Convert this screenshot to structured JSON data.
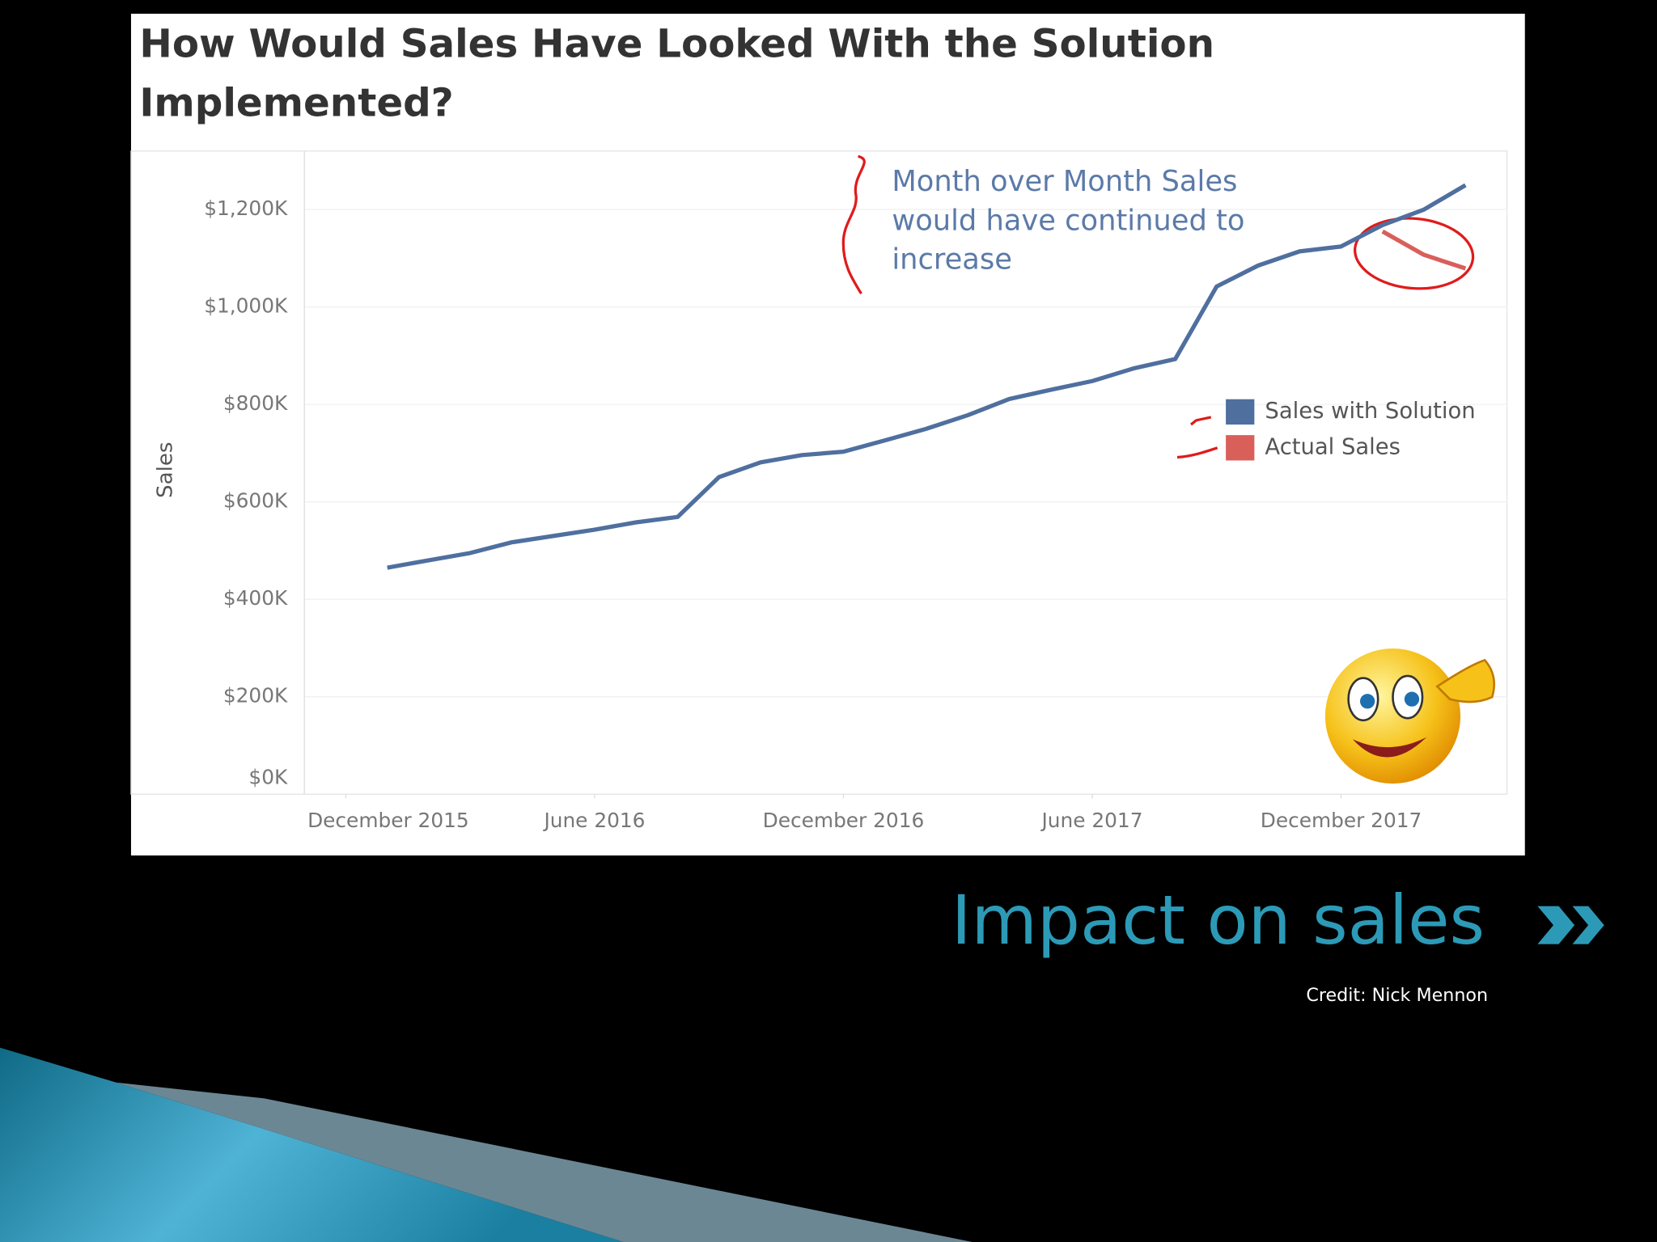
{
  "chart_data": {
    "type": "line",
    "title": "How Would Sales Have Looked With the Solution Implemented?",
    "ylabel": "Sales",
    "annotation": [
      "Month over Month Sales",
      "would have continued to",
      "increase"
    ],
    "x": [
      "2016-01",
      "2016-02",
      "2016-03",
      "2016-04",
      "2016-05",
      "2016-06",
      "2016-07",
      "2016-08",
      "2016-09",
      "2016-10",
      "2016-11",
      "2016-12",
      "2017-01",
      "2017-02",
      "2017-03",
      "2017-04",
      "2017-05",
      "2017-06",
      "2017-07",
      "2017-08",
      "2017-09",
      "2017-10",
      "2017-11",
      "2017-12",
      "2018-01",
      "2018-02",
      "2018-03"
    ],
    "series": [
      {
        "name": "Sales with Solution",
        "color": "#4f6f9f",
        "values": [
          465,
          480,
          495,
          517,
          530,
          543,
          558,
          569,
          651,
          681,
          696,
          703,
          726,
          750,
          778,
          811,
          830,
          848,
          874,
          893,
          1042,
          1085,
          1114,
          1124,
          1168,
          1200,
          1250
        ]
      },
      {
        "name": "Actual Sales",
        "color": "#d95f5a",
        "values": [
          null,
          null,
          null,
          null,
          null,
          null,
          null,
          null,
          null,
          null,
          null,
          null,
          null,
          null,
          null,
          null,
          null,
          null,
          null,
          null,
          null,
          null,
          null,
          null,
          1155,
          1107,
          1079
        ]
      }
    ],
    "xlim": [
      "2015-11",
      "2018-04"
    ],
    "xticks": [
      {
        "value": "2015-12",
        "label": "December 2015"
      },
      {
        "value": "2016-06",
        "label": "June 2016"
      },
      {
        "value": "2016-12",
        "label": "December 2016"
      },
      {
        "value": "2017-06",
        "label": "June 2017"
      },
      {
        "value": "2017-12",
        "label": "December 2017"
      }
    ],
    "ylim": [
      0,
      1320
    ],
    "yticks": [
      {
        "value": 0,
        "label": "$0K"
      },
      {
        "value": 200,
        "label": "$200K"
      },
      {
        "value": 400,
        "label": "$400K"
      },
      {
        "value": 600,
        "label": "$600K"
      },
      {
        "value": 800,
        "label": "$800K"
      },
      {
        "value": 1000,
        "label": "$1,000K"
      },
      {
        "value": 1200,
        "label": "$1,200K"
      }
    ],
    "grid": true,
    "legend": "right"
  },
  "slide": {
    "title": "Impact on sales",
    "credit": "Credit: Nick Mennon"
  }
}
